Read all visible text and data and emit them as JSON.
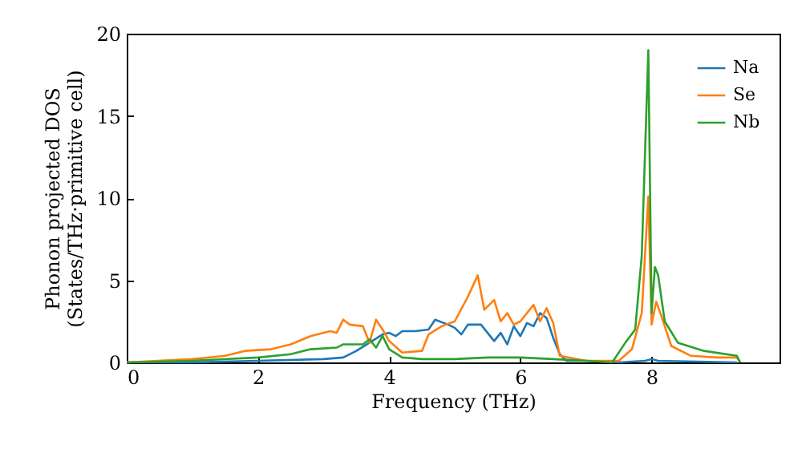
{
  "chart_data": {
    "type": "line",
    "xlabel": "Frequency (THz)",
    "ylabel": "Phonon projected DOS\n(States/THz·primitive cell)",
    "xlim": [
      0,
      9.95
    ],
    "xticks": [
      0,
      2,
      4,
      6,
      8
    ],
    "ylim": [
      0,
      20
    ],
    "yticks": [
      0,
      5,
      10,
      15,
      20
    ],
    "grid": false,
    "legend": "top right",
    "series": [
      {
        "name": "Na",
        "color": "#1f77b4",
        "x": [
          0,
          1,
          2,
          3.0,
          3.3,
          3.5,
          3.7,
          3.9,
          4.0,
          4.1,
          4.2,
          4.4,
          4.6,
          4.7,
          4.9,
          5.0,
          5.1,
          5.2,
          5.4,
          5.5,
          5.6,
          5.7,
          5.8,
          5.9,
          6.0,
          6.1,
          6.2,
          6.3,
          6.4,
          6.5,
          6.6,
          6.7,
          7.0,
          7.5,
          7.9,
          8.0,
          8.1,
          9.3
        ],
        "values": [
          0,
          0,
          0.1,
          0.2,
          0.3,
          0.7,
          1.2,
          1.7,
          1.8,
          1.6,
          1.9,
          1.9,
          2.0,
          2.6,
          2.3,
          2.1,
          1.7,
          2.3,
          2.3,
          1.8,
          1.3,
          1.8,
          1.1,
          2.2,
          1.6,
          2.4,
          2.2,
          3.0,
          2.7,
          1.5,
          0.5,
          0.1,
          0.1,
          0,
          0.1,
          0.2,
          0.1,
          0
        ]
      },
      {
        "name": "Se",
        "color": "#ff7f0e",
        "x": [
          0,
          1,
          1.5,
          1.8,
          2.2,
          2.5,
          2.8,
          3.1,
          3.2,
          3.3,
          3.4,
          3.6,
          3.7,
          3.8,
          3.9,
          4.0,
          4.2,
          4.5,
          4.6,
          4.8,
          5.0,
          5.2,
          5.35,
          5.45,
          5.6,
          5.7,
          5.8,
          5.9,
          6.0,
          6.2,
          6.3,
          6.4,
          6.5,
          6.6,
          7.0,
          7.5,
          7.7,
          7.85,
          7.95,
          8.0,
          8.07,
          8.15,
          8.3,
          8.6,
          9.0,
          9.3,
          9.35
        ],
        "values": [
          0,
          0.2,
          0.4,
          0.7,
          0.8,
          1.1,
          1.6,
          1.9,
          1.8,
          2.6,
          2.3,
          2.2,
          1.2,
          2.6,
          2.0,
          1.3,
          0.6,
          0.7,
          1.7,
          2.2,
          2.5,
          4.0,
          5.3,
          3.2,
          3.8,
          2.5,
          3.0,
          2.3,
          2.5,
          3.5,
          2.5,
          3.3,
          2.4,
          0.4,
          0.1,
          0.1,
          0.8,
          3.0,
          10.1,
          2.3,
          3.7,
          2.8,
          1.0,
          0.4,
          0.3,
          0.3,
          0
        ]
      },
      {
        "name": "Nb",
        "color": "#2ca02c",
        "x": [
          0,
          1,
          2,
          2.5,
          2.8,
          3.2,
          3.3,
          3.6,
          3.7,
          3.8,
          3.9,
          4.0,
          4.2,
          4.5,
          5.0,
          5.5,
          6.0,
          6.5,
          7.0,
          7.4,
          7.6,
          7.75,
          7.85,
          7.95,
          8.0,
          8.05,
          8.1,
          8.2,
          8.4,
          8.8,
          9.3,
          9.35
        ],
        "values": [
          0,
          0.1,
          0.3,
          0.5,
          0.8,
          0.9,
          1.1,
          1.1,
          1.4,
          0.9,
          1.6,
          0.8,
          0.3,
          0.2,
          0.2,
          0.3,
          0.3,
          0.2,
          0.1,
          0,
          1.2,
          2.0,
          6.5,
          19.0,
          3.0,
          5.8,
          5.3,
          2.5,
          1.2,
          0.7,
          0.4,
          0
        ]
      }
    ]
  }
}
